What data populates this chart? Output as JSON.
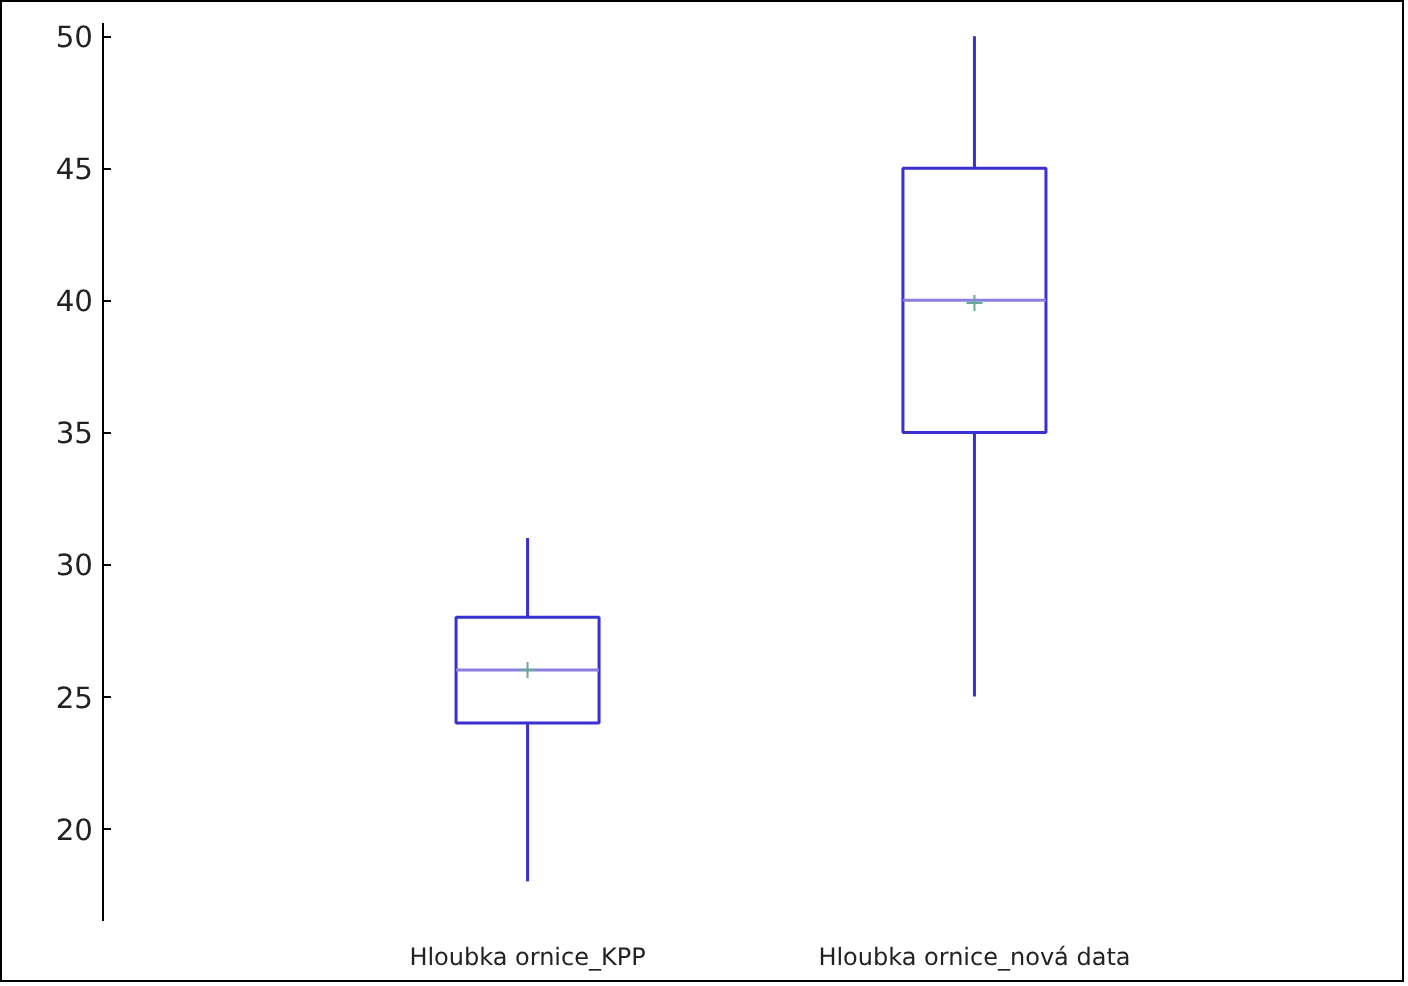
{
  "chart_data": {
    "type": "box",
    "categories": [
      "Hloubka ornice_KPP",
      "Hloubka ornice_nová data"
    ],
    "boxes": [
      {
        "low": 18,
        "q1": 24,
        "median": 26,
        "q3": 28,
        "high": 31,
        "mean": 26
      },
      {
        "low": 25,
        "q1": 35,
        "median": 40,
        "q3": 45,
        "high": 50,
        "mean": 39.9
      }
    ],
    "color": "#3a2fd0",
    "ylim": [
      16.5,
      50.5
    ],
    "yticks": [
      20,
      25,
      30,
      35,
      40,
      45,
      50
    ],
    "grid": false
  }
}
